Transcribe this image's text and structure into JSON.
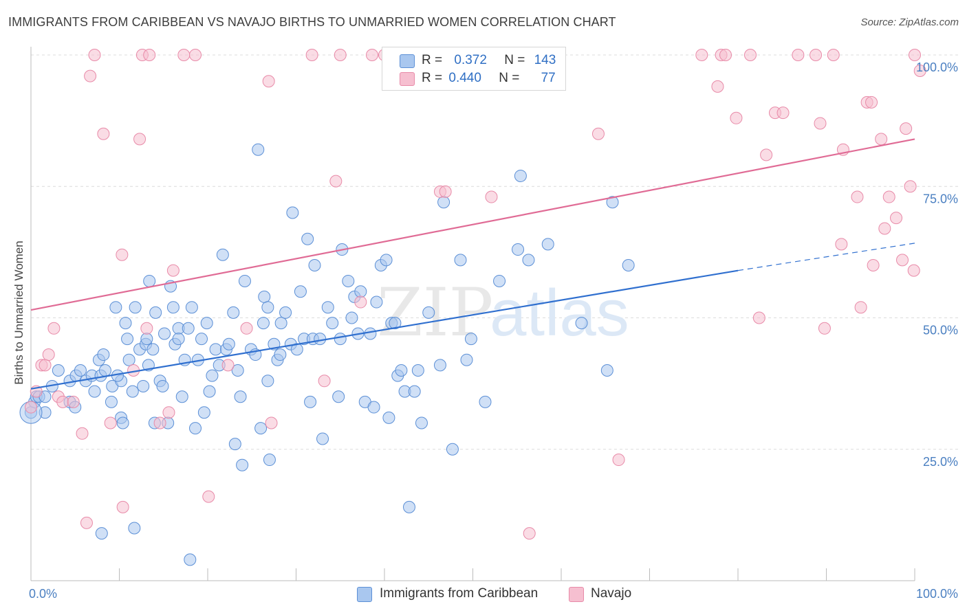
{
  "title": "IMMIGRANTS FROM CARIBBEAN VS NAVAJO BIRTHS TO UNMARRIED WOMEN CORRELATION CHART",
  "source": "Source: ZipAtlas.com",
  "watermark": {
    "zip": "ZIP",
    "atlas": "atlas"
  },
  "legend": {
    "r_label": "R =",
    "n_label": "N =",
    "series1": {
      "r": "0.372",
      "n": "143"
    },
    "series2": {
      "r": "0.440",
      "n": "77"
    }
  },
  "colors": {
    "series1_fill": "#a9c7ef",
    "series1_stroke": "#5b8fd6",
    "series1_line": "#2f6fcf",
    "series2_fill": "#f6bfd0",
    "series2_stroke": "#e88aa8",
    "series2_line": "#e06b95",
    "grid": "#dcdcdc",
    "tick_text": "#4a7fc1"
  },
  "chart_data": {
    "type": "scatter",
    "title": "IMMIGRANTS FROM CARIBBEAN VS NAVAJO BIRTHS TO UNMARRIED WOMEN CORRELATION CHART",
    "xlabel": "",
    "ylabel": "Births to Unmarried Women",
    "xlim": [
      0,
      100
    ],
    "ylim": [
      0,
      100
    ],
    "x_ticks": [
      "0.0%",
      "100.0%"
    ],
    "y_ticks": [
      "25.0%",
      "50.0%",
      "75.0%",
      "100.0%"
    ],
    "y_tick_values": [
      25,
      50,
      75,
      100
    ],
    "grid": true,
    "legend_position": "top-center",
    "series": [
      {
        "name": "Immigrants from Caribbean",
        "r": 0.372,
        "n": 143,
        "trend": {
          "x0": 0,
          "y0": 36.5,
          "x1": 80,
          "y1": 59,
          "dash_to_x": 100,
          "dash_to_y": 64.2
        },
        "points": [
          [
            0.0,
            32
          ],
          [
            0.4,
            34
          ],
          [
            0.6,
            35
          ],
          [
            0.9,
            35
          ],
          [
            1.6,
            32
          ],
          [
            1.6,
            35
          ],
          [
            2.4,
            37
          ],
          [
            3.1,
            40
          ],
          [
            4.4,
            34
          ],
          [
            4.4,
            38
          ],
          [
            5.0,
            33
          ],
          [
            5.1,
            39
          ],
          [
            5.6,
            40
          ],
          [
            6.2,
            38
          ],
          [
            6.9,
            39
          ],
          [
            7.2,
            36
          ],
          [
            7.7,
            42
          ],
          [
            7.9,
            39
          ],
          [
            8.2,
            43
          ],
          [
            8.4,
            40
          ],
          [
            9.1,
            34
          ],
          [
            9.2,
            37
          ],
          [
            9.6,
            52
          ],
          [
            10.2,
            38
          ],
          [
            10.2,
            31
          ],
          [
            10.4,
            30
          ],
          [
            10.7,
            49
          ],
          [
            10.9,
            46
          ],
          [
            11.1,
            42
          ],
          [
            11.5,
            36
          ],
          [
            11.8,
            52
          ],
          [
            12.3,
            44
          ],
          [
            12.7,
            37
          ],
          [
            13.0,
            45
          ],
          [
            13.1,
            46
          ],
          [
            13.3,
            41
          ],
          [
            13.4,
            57
          ],
          [
            13.8,
            44
          ],
          [
            14.0,
            30
          ],
          [
            14.1,
            51
          ],
          [
            14.6,
            38
          ],
          [
            14.9,
            37
          ],
          [
            15.1,
            47
          ],
          [
            15.5,
            30
          ],
          [
            15.8,
            56
          ],
          [
            16.1,
            52
          ],
          [
            16.3,
            45
          ],
          [
            16.7,
            48
          ],
          [
            16.7,
            46
          ],
          [
            17.1,
            35
          ],
          [
            17.4,
            42
          ],
          [
            17.8,
            48
          ],
          [
            18.2,
            52
          ],
          [
            18.6,
            29
          ],
          [
            18.9,
            42
          ],
          [
            19.3,
            46
          ],
          [
            19.6,
            32
          ],
          [
            19.9,
            49
          ],
          [
            20.2,
            36
          ],
          [
            20.5,
            39
          ],
          [
            20.9,
            44
          ],
          [
            21.3,
            41
          ],
          [
            21.7,
            62
          ],
          [
            22.1,
            44
          ],
          [
            22.4,
            45
          ],
          [
            22.9,
            51
          ],
          [
            23.1,
            26
          ],
          [
            23.4,
            40
          ],
          [
            23.7,
            35
          ],
          [
            23.9,
            22
          ],
          [
            24.2,
            57
          ],
          [
            24.9,
            44
          ],
          [
            25.4,
            43
          ],
          [
            25.7,
            82
          ],
          [
            26.0,
            29
          ],
          [
            26.3,
            49
          ],
          [
            26.4,
            54
          ],
          [
            26.8,
            52
          ],
          [
            27.0,
            23
          ],
          [
            27.5,
            45
          ],
          [
            27.9,
            42
          ],
          [
            28.2,
            43
          ],
          [
            28.3,
            49
          ],
          [
            28.8,
            51
          ],
          [
            29.6,
            70
          ],
          [
            29.4,
            45
          ],
          [
            30.1,
            44
          ],
          [
            30.9,
            46
          ],
          [
            31.3,
            65
          ],
          [
            31.6,
            34
          ],
          [
            31.9,
            46
          ],
          [
            32.1,
            60
          ],
          [
            32.7,
            46
          ],
          [
            33.0,
            27
          ],
          [
            33.6,
            52
          ],
          [
            34.1,
            49
          ],
          [
            34.8,
            35
          ],
          [
            35.0,
            46
          ],
          [
            35.2,
            63
          ],
          [
            35.9,
            57
          ],
          [
            36.3,
            50
          ],
          [
            36.6,
            54
          ],
          [
            37.0,
            47
          ],
          [
            37.3,
            55
          ],
          [
            37.8,
            34
          ],
          [
            38.4,
            47
          ],
          [
            38.8,
            33
          ],
          [
            39.1,
            53
          ],
          [
            39.6,
            60
          ],
          [
            40.2,
            61
          ],
          [
            40.5,
            31
          ],
          [
            40.8,
            49
          ],
          [
            41.2,
            49
          ],
          [
            41.5,
            39
          ],
          [
            41.9,
            40
          ],
          [
            42.3,
            36
          ],
          [
            42.8,
            14
          ],
          [
            43.4,
            36
          ],
          [
            43.8,
            40
          ],
          [
            44.2,
            30
          ],
          [
            45.0,
            51
          ],
          [
            46.3,
            41
          ],
          [
            46.7,
            72
          ],
          [
            47.7,
            25
          ],
          [
            48.6,
            61
          ],
          [
            49.3,
            42
          ],
          [
            49.8,
            46
          ],
          [
            51.4,
            34
          ],
          [
            53.0,
            57
          ],
          [
            55.1,
            63
          ],
          [
            55.4,
            77
          ],
          [
            56.3,
            61
          ],
          [
            58.5,
            64
          ],
          [
            62.3,
            49
          ],
          [
            65.2,
            40
          ],
          [
            65.8,
            72
          ],
          [
            67.6,
            60
          ],
          [
            9.8,
            39
          ],
          [
            11.7,
            10
          ],
          [
            8.0,
            9
          ],
          [
            18.0,
            4
          ],
          [
            26.8,
            38
          ],
          [
            30.5,
            55
          ]
        ]
      },
      {
        "name": "Navajo",
        "r": 0.44,
        "n": 77,
        "trend": {
          "x0": 0,
          "y0": 51.5,
          "x1": 100,
          "y1": 84
        },
        "points": [
          [
            0.0,
            33
          ],
          [
            0.6,
            36
          ],
          [
            1.2,
            41
          ],
          [
            1.6,
            41
          ],
          [
            2.0,
            43
          ],
          [
            2.6,
            48
          ],
          [
            3.1,
            35
          ],
          [
            3.6,
            34
          ],
          [
            4.8,
            34
          ],
          [
            5.8,
            28
          ],
          [
            6.3,
            11
          ],
          [
            6.7,
            96
          ],
          [
            7.2,
            100
          ],
          [
            8.2,
            85
          ],
          [
            9.0,
            30
          ],
          [
            10.3,
            62
          ],
          [
            10.4,
            14
          ],
          [
            11.6,
            40
          ],
          [
            12.3,
            84
          ],
          [
            12.6,
            100
          ],
          [
            13.1,
            48
          ],
          [
            13.4,
            100
          ],
          [
            14.6,
            30
          ],
          [
            15.6,
            32
          ],
          [
            16.1,
            59
          ],
          [
            17.3,
            100
          ],
          [
            18.6,
            100
          ],
          [
            20.1,
            16
          ],
          [
            22.3,
            41
          ],
          [
            24.4,
            48
          ],
          [
            26.9,
            95
          ],
          [
            27.2,
            30
          ],
          [
            31.8,
            100
          ],
          [
            33.2,
            38
          ],
          [
            34.5,
            76
          ],
          [
            35.0,
            100
          ],
          [
            37.3,
            53
          ],
          [
            38.6,
            100
          ],
          [
            40.0,
            100
          ],
          [
            46.3,
            74
          ],
          [
            46.9,
            74
          ],
          [
            52.1,
            73
          ],
          [
            56.4,
            9
          ],
          [
            64.2,
            85
          ],
          [
            66.5,
            23
          ],
          [
            75.9,
            100
          ],
          [
            77.7,
            94
          ],
          [
            78.1,
            100
          ],
          [
            78.6,
            100
          ],
          [
            79.8,
            88
          ],
          [
            81.4,
            100
          ],
          [
            82.4,
            50
          ],
          [
            83.2,
            81
          ],
          [
            84.2,
            89
          ],
          [
            85.1,
            89
          ],
          [
            86.8,
            100
          ],
          [
            89.3,
            87
          ],
          [
            89.8,
            48
          ],
          [
            90.8,
            100
          ],
          [
            91.7,
            64
          ],
          [
            91.9,
            82
          ],
          [
            93.5,
            73
          ],
          [
            93.9,
            52
          ],
          [
            94.6,
            91
          ],
          [
            95.1,
            91
          ],
          [
            95.3,
            60
          ],
          [
            96.2,
            84
          ],
          [
            96.6,
            67
          ],
          [
            97.1,
            73
          ],
          [
            97.9,
            69
          ],
          [
            98.6,
            61
          ],
          [
            99.0,
            86
          ],
          [
            99.5,
            75
          ],
          [
            99.9,
            59
          ],
          [
            100.0,
            100
          ],
          [
            100.6,
            97
          ],
          [
            88.8,
            100
          ]
        ]
      }
    ]
  },
  "bottom_legend": {
    "series1": "Immigrants from Caribbean",
    "series2": "Navajo"
  }
}
